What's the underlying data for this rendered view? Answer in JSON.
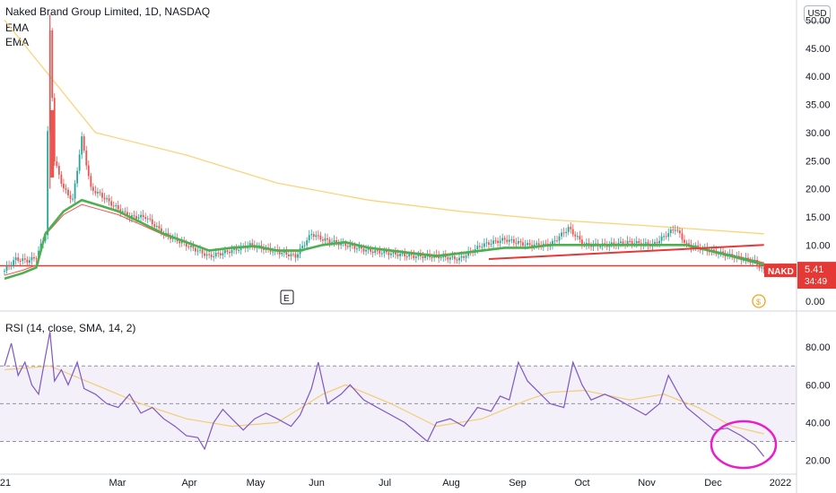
{
  "header": {
    "title": "Naked Brand Group Limited, 1D, NASDAQ",
    "indicator_1": "EMA",
    "indicator_2": "EMA",
    "currency": "USD"
  },
  "price_tag": {
    "symbol": "NAKD",
    "price": "5.41",
    "countdown": "34:49",
    "color": "#f23645"
  },
  "markers": {
    "earnings": "E",
    "dividend": "$"
  },
  "rsi_header": "RSI (14, close, SMA, 14, 2)",
  "colors": {
    "up": "#26a69a",
    "down": "#ef5350",
    "ema_fast": "#4caf50",
    "ema_slow": "#ef5350",
    "ema_long": "#fdd37a",
    "rsi": "#7e57c2",
    "rsi_ma": "#f2cd72",
    "support": "#e53935",
    "circle": "#e91ec9"
  },
  "chart_data": [
    {
      "type": "candlestick",
      "title": "Naked Brand Group Limited, 1D, NASDAQ",
      "y_axis_ticks": [
        "0.00",
        "5.00",
        "10.00",
        "15.00",
        "20.00",
        "25.00",
        "30.00",
        "35.00",
        "40.00",
        "45.00",
        "50.00"
      ],
      "ylim": [
        0,
        52
      ],
      "x_axis_ticks": [
        "21",
        "Mar",
        "Apr",
        "May",
        "Jun",
        "Jul",
        "Aug",
        "Sep",
        "Oct",
        "Nov",
        "Dec",
        "2022"
      ],
      "series": [
        {
          "name": "Price",
          "values": [
            [
              1,
              6.0
            ],
            [
              5,
              7.5
            ],
            [
              10,
              7.2
            ],
            [
              14,
              7.8
            ],
            [
              18,
              12
            ],
            [
              20,
              48
            ],
            [
              22,
              25
            ],
            [
              26,
              20
            ],
            [
              30,
              18
            ],
            [
              34,
              29
            ],
            [
              38,
              20
            ],
            [
              42,
              19
            ],
            [
              48,
              17
            ],
            [
              55,
              15
            ],
            [
              62,
              15
            ],
            [
              70,
              12
            ],
            [
              80,
              10
            ],
            [
              90,
              8
            ],
            [
              100,
              9
            ],
            [
              108,
              10
            ],
            [
              118,
              9
            ],
            [
              128,
              8
            ],
            [
              135,
              12
            ],
            [
              140,
              11
            ],
            [
              150,
              10
            ],
            [
              160,
              9
            ],
            [
              170,
              8.5
            ],
            [
              180,
              8
            ],
            [
              190,
              8
            ],
            [
              200,
              7.5
            ],
            [
              210,
              10
            ],
            [
              220,
              11
            ],
            [
              230,
              10
            ],
            [
              240,
              10
            ],
            [
              248,
              13
            ],
            [
              255,
              10
            ],
            [
              265,
              10
            ],
            [
              275,
              10.5
            ],
            [
              285,
              10
            ],
            [
              295,
              13
            ],
            [
              300,
              10
            ],
            [
              310,
              9
            ],
            [
              320,
              8
            ],
            [
              330,
              7
            ],
            [
              334,
              5.41
            ]
          ]
        },
        {
          "name": "EMA",
          "values": [
            [
              0,
              4
            ],
            [
              8,
              5
            ],
            [
              14,
              6
            ],
            [
              18,
              12
            ],
            [
              26,
              16
            ],
            [
              34,
              18
            ],
            [
              42,
              17
            ],
            [
              50,
              16
            ],
            [
              60,
              14
            ],
            [
              70,
              12
            ],
            [
              80,
              10.5
            ],
            [
              90,
              9
            ],
            [
              100,
              9.5
            ],
            [
              110,
              9.8
            ],
            [
              120,
              9
            ],
            [
              130,
              9
            ],
            [
              140,
              10
            ],
            [
              150,
              10.5
            ],
            [
              160,
              9.5
            ],
            [
              170,
              9
            ],
            [
              180,
              8.5
            ],
            [
              190,
              8
            ],
            [
              200,
              8.5
            ],
            [
              210,
              9
            ],
            [
              220,
              9.5
            ],
            [
              230,
              9.5
            ],
            [
              240,
              10
            ],
            [
              250,
              10
            ],
            [
              260,
              10
            ],
            [
              270,
              10
            ],
            [
              280,
              10
            ],
            [
              290,
              10
            ],
            [
              300,
              10
            ],
            [
              310,
              9
            ],
            [
              320,
              8
            ],
            [
              334,
              6.5
            ]
          ]
        },
        {
          "name": "EMA",
          "values": [
            [
              0,
              50
            ],
            [
              40,
              30
            ],
            [
              80,
              26
            ],
            [
              120,
              21
            ],
            [
              160,
              18
            ],
            [
              200,
              16
            ],
            [
              240,
              14.5
            ],
            [
              280,
              13.5
            ],
            [
              334,
              12
            ]
          ]
        }
      ],
      "support_level": 6.3,
      "trendline": [
        [
          213,
          7.5
        ],
        [
          334,
          10
        ]
      ]
    },
    {
      "type": "line",
      "title": "RSI (14, close, SMA, 14, 2)",
      "y_axis_ticks": [
        "20.00",
        "40.00",
        "60.00",
        "80.00"
      ],
      "ylim": [
        15,
        92
      ],
      "bands": [
        30,
        50,
        70
      ],
      "series": [
        {
          "name": "RSI",
          "values": [
            [
              0,
              70
            ],
            [
              3,
              82
            ],
            [
              6,
              65
            ],
            [
              9,
              72
            ],
            [
              12,
              60
            ],
            [
              15,
              55
            ],
            [
              18,
              75
            ],
            [
              20,
              88
            ],
            [
              22,
              62
            ],
            [
              25,
              68
            ],
            [
              28,
              60
            ],
            [
              32,
              72
            ],
            [
              35,
              58
            ],
            [
              40,
              55
            ],
            [
              45,
              50
            ],
            [
              50,
              48
            ],
            [
              55,
              55
            ],
            [
              60,
              45
            ],
            [
              65,
              48
            ],
            [
              70,
              42
            ],
            [
              75,
              38
            ],
            [
              80,
              33
            ],
            [
              85,
              32
            ],
            [
              88,
              26
            ],
            [
              92,
              40
            ],
            [
              96,
              47
            ],
            [
              100,
              42
            ],
            [
              105,
              36
            ],
            [
              110,
              42
            ],
            [
              115,
              45
            ],
            [
              120,
              42
            ],
            [
              126,
              38
            ],
            [
              130,
              44
            ],
            [
              135,
              58
            ],
            [
              138,
              72
            ],
            [
              142,
              50
            ],
            [
              148,
              55
            ],
            [
              152,
              60
            ],
            [
              158,
              52
            ],
            [
              164,
              48
            ],
            [
              170,
              44
            ],
            [
              176,
              40
            ],
            [
              182,
              34
            ],
            [
              186,
              30
            ],
            [
              190,
              40
            ],
            [
              196,
              42
            ],
            [
              202,
              38
            ],
            [
              208,
              48
            ],
            [
              214,
              46
            ],
            [
              218,
              54
            ],
            [
              222,
              52
            ],
            [
              226,
              72
            ],
            [
              230,
              62
            ],
            [
              235,
              56
            ],
            [
              240,
              50
            ],
            [
              246,
              48
            ],
            [
              250,
              72
            ],
            [
              254,
              60
            ],
            [
              258,
              52
            ],
            [
              264,
              55
            ],
            [
              270,
              52
            ],
            [
              276,
              48
            ],
            [
              282,
              44
            ],
            [
              288,
              50
            ],
            [
              292,
              65
            ],
            [
              296,
              56
            ],
            [
              300,
              48
            ],
            [
              306,
              42
            ],
            [
              312,
              36
            ],
            [
              318,
              37
            ],
            [
              324,
              33
            ],
            [
              330,
              28
            ],
            [
              334,
              22
            ]
          ]
        },
        {
          "name": "RSI-based MA",
          "values": [
            [
              0,
              68
            ],
            [
              20,
              70
            ],
            [
              40,
              60
            ],
            [
              60,
              50
            ],
            [
              80,
              42
            ],
            [
              100,
              38
            ],
            [
              120,
              40
            ],
            [
              140,
              55
            ],
            [
              150,
              60
            ],
            [
              170,
              50
            ],
            [
              190,
              38
            ],
            [
              210,
              42
            ],
            [
              230,
              52
            ],
            [
              240,
              56
            ],
            [
              255,
              57
            ],
            [
              275,
              52
            ],
            [
              290,
              55
            ],
            [
              305,
              48
            ],
            [
              320,
              38
            ],
            [
              334,
              34
            ]
          ]
        }
      ]
    }
  ]
}
